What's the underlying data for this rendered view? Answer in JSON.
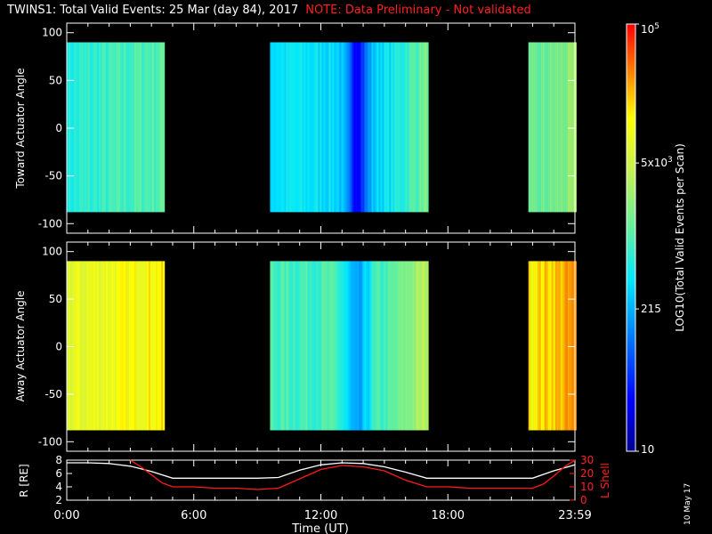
{
  "title": {
    "main": "TWINS1: Total Valid Events: 25 Mar (day  84), 2017",
    "note": "NOTE: Data Preliminary - Not validated"
  },
  "footer_date": "10 May 17",
  "colorbar": {
    "label": "LOG10(Total Valid Events per Scan)",
    "scale": "log",
    "range": [
      10,
      100000
    ],
    "tick_labels": [
      "10",
      "215",
      "5x10^3",
      "10^5"
    ],
    "tick_values": [
      10,
      215,
      5000,
      100000
    ]
  },
  "chart_data": [
    {
      "type": "heatmap",
      "ylabel": "Toward Actuator Angle",
      "ylim": [
        -110,
        110
      ],
      "y_ticks": [
        100,
        50,
        0,
        -50,
        -100
      ],
      "data_y_range": [
        -88,
        90
      ],
      "x_range_hours": [
        0,
        24
      ],
      "data_intervals_hours": [
        [
          0.0,
          4.6
        ],
        [
          9.6,
          17.0
        ],
        [
          21.8,
          24.0
        ]
      ],
      "dominant_values": {
        "interval_1": 800,
        "interval_2": 400,
        "interval_3": 1500
      }
    },
    {
      "type": "heatmap",
      "ylabel": "Away Actuator Angle",
      "ylim": [
        -110,
        110
      ],
      "y_ticks": [
        100,
        50,
        0,
        -50,
        -100
      ],
      "data_y_range": [
        -88,
        90
      ],
      "x_range_hours": [
        0,
        24
      ],
      "data_intervals_hours": [
        [
          0.0,
          4.6
        ],
        [
          9.6,
          17.0
        ],
        [
          21.8,
          24.0
        ]
      ],
      "dominant_values": {
        "interval_1": 10000,
        "interval_2": 900,
        "interval_3": 20000
      }
    },
    {
      "type": "line",
      "ylabel_left": "R [RE]",
      "ylabel_right": "L Shell",
      "ylim_left": [
        2,
        8
      ],
      "ylim_right": [
        0,
        30
      ],
      "y_ticks_left": [
        8,
        6,
        4,
        2
      ],
      "y_ticks_right": [
        30,
        20,
        10,
        0
      ],
      "xlabel": "Time (UT)",
      "x_tick_labels": [
        "0:00",
        "6:00",
        "12:00",
        "18:00",
        "23:59"
      ],
      "x_tick_hours": [
        0,
        6,
        12,
        18,
        24
      ],
      "series": [
        {
          "axis": "left",
          "color": "#ffffff",
          "x": [
            0,
            1,
            2,
            3,
            4,
            5,
            6,
            7,
            8,
            9,
            10,
            11,
            12,
            13,
            14,
            15,
            16,
            17,
            18,
            19,
            20,
            21,
            22,
            23,
            24
          ],
          "y": [
            7.6,
            7.6,
            7.5,
            7.1,
            6.3,
            5.3,
            5.3,
            5.3,
            5.3,
            5.3,
            5.4,
            6.5,
            7.3,
            7.6,
            7.5,
            7.0,
            6.2,
            5.3,
            5.3,
            5.3,
            5.3,
            5.3,
            5.3,
            6.4,
            7.3
          ]
        },
        {
          "axis": "right",
          "color": "#ff1a1a",
          "x": [
            3.0,
            3.5,
            4.0,
            4.5,
            5.0,
            6,
            7,
            8,
            9,
            10,
            11,
            12,
            13,
            14,
            15,
            16,
            17,
            18,
            19,
            20,
            21,
            22,
            22.5,
            23,
            23.5,
            24
          ],
          "y": [
            30,
            25,
            19,
            13,
            10,
            10,
            9,
            9,
            8,
            9,
            16,
            23,
            26,
            25,
            22,
            15,
            10,
            10,
            9,
            9,
            9,
            9,
            12,
            18,
            25,
            30
          ]
        }
      ]
    }
  ]
}
